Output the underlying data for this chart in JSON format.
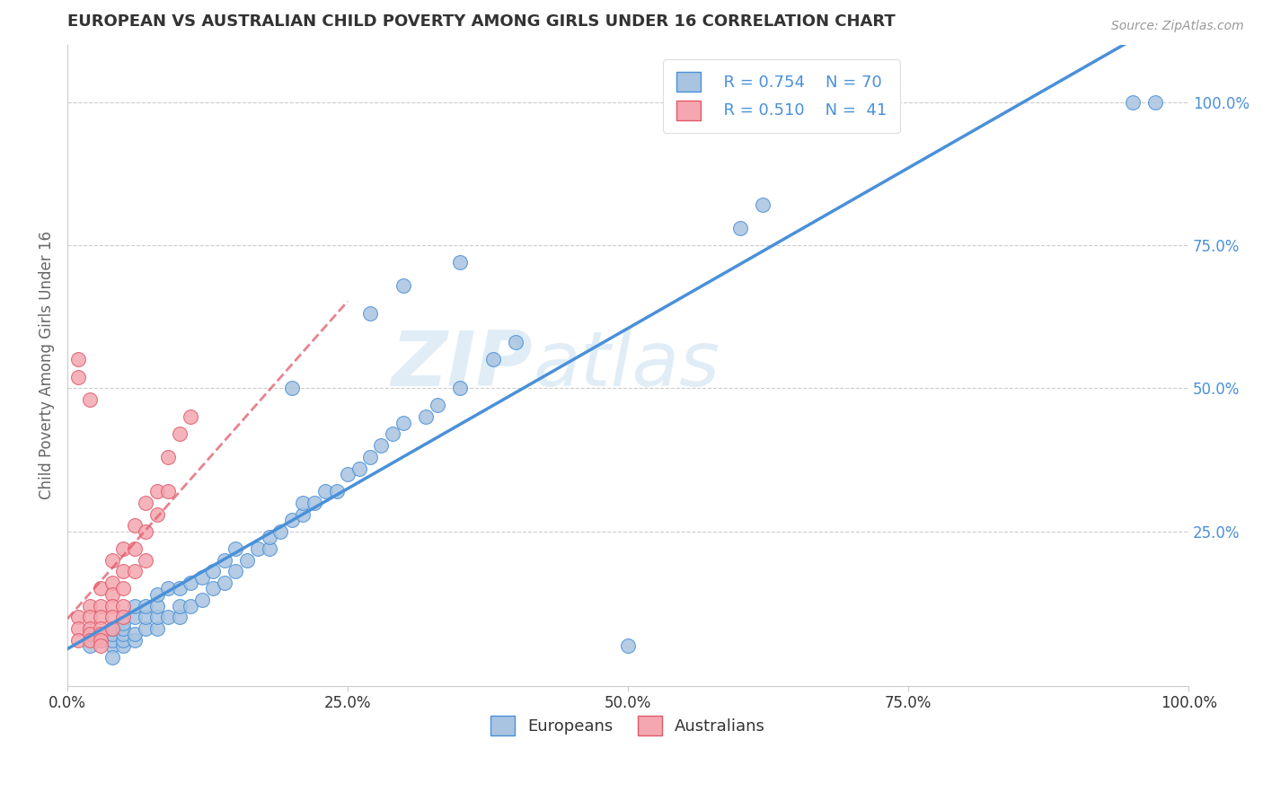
{
  "title": "EUROPEAN VS AUSTRALIAN CHILD POVERTY AMONG GIRLS UNDER 16 CORRELATION CHART",
  "source": "Source: ZipAtlas.com",
  "ylabel": "Child Poverty Among Girls Under 16",
  "xlim": [
    0,
    1.0
  ],
  "ylim": [
    -0.02,
    1.1
  ],
  "watermark_zip": "ZIP",
  "watermark_atlas": "atlas",
  "legend_r_blue": "R = 0.754",
  "legend_n_blue": "N = 70",
  "legend_r_pink": "R = 0.510",
  "legend_n_pink": "N =  41",
  "blue_color": "#a8c4e0",
  "blue_line_color": "#4a90d9",
  "pink_color": "#f4a7b0",
  "pink_line_color": "#e05a6a",
  "blue_scatter_x": [
    0.02,
    0.03,
    0.03,
    0.04,
    0.04,
    0.04,
    0.04,
    0.05,
    0.05,
    0.05,
    0.05,
    0.05,
    0.06,
    0.06,
    0.06,
    0.06,
    0.07,
    0.07,
    0.07,
    0.08,
    0.08,
    0.08,
    0.08,
    0.09,
    0.09,
    0.1,
    0.1,
    0.1,
    0.11,
    0.11,
    0.12,
    0.12,
    0.13,
    0.13,
    0.14,
    0.14,
    0.15,
    0.15,
    0.16,
    0.17,
    0.18,
    0.18,
    0.19,
    0.2,
    0.21,
    0.21,
    0.22,
    0.23,
    0.24,
    0.25,
    0.26,
    0.27,
    0.28,
    0.29,
    0.3,
    0.32,
    0.33,
    0.35,
    0.38,
    0.4,
    0.2,
    0.27,
    0.3,
    0.35,
    0.6,
    0.62,
    0.95,
    0.97,
    0.5,
    0.04
  ],
  "blue_scatter_y": [
    0.05,
    0.07,
    0.06,
    0.05,
    0.06,
    0.07,
    0.08,
    0.05,
    0.06,
    0.07,
    0.08,
    0.09,
    0.06,
    0.07,
    0.1,
    0.12,
    0.08,
    0.1,
    0.12,
    0.08,
    0.1,
    0.12,
    0.14,
    0.1,
    0.15,
    0.1,
    0.12,
    0.15,
    0.12,
    0.16,
    0.13,
    0.17,
    0.15,
    0.18,
    0.16,
    0.2,
    0.18,
    0.22,
    0.2,
    0.22,
    0.22,
    0.24,
    0.25,
    0.27,
    0.28,
    0.3,
    0.3,
    0.32,
    0.32,
    0.35,
    0.36,
    0.38,
    0.4,
    0.42,
    0.44,
    0.45,
    0.47,
    0.5,
    0.55,
    0.58,
    0.5,
    0.63,
    0.68,
    0.72,
    0.78,
    0.82,
    1.0,
    1.0,
    0.05,
    0.03
  ],
  "pink_scatter_x": [
    0.01,
    0.01,
    0.01,
    0.01,
    0.02,
    0.02,
    0.02,
    0.02,
    0.02,
    0.03,
    0.03,
    0.03,
    0.03,
    0.03,
    0.03,
    0.04,
    0.04,
    0.04,
    0.04,
    0.04,
    0.04,
    0.05,
    0.05,
    0.05,
    0.05,
    0.05,
    0.06,
    0.06,
    0.06,
    0.07,
    0.07,
    0.07,
    0.08,
    0.08,
    0.09,
    0.09,
    0.1,
    0.11,
    0.01,
    0.02,
    0.03
  ],
  "pink_scatter_y": [
    0.55,
    0.1,
    0.08,
    0.06,
    0.12,
    0.1,
    0.08,
    0.07,
    0.06,
    0.15,
    0.12,
    0.1,
    0.08,
    0.07,
    0.06,
    0.2,
    0.16,
    0.14,
    0.12,
    0.1,
    0.08,
    0.22,
    0.18,
    0.15,
    0.12,
    0.1,
    0.26,
    0.22,
    0.18,
    0.3,
    0.25,
    0.2,
    0.32,
    0.28,
    0.38,
    0.32,
    0.42,
    0.45,
    0.52,
    0.48,
    0.05
  ],
  "background_color": "#ffffff",
  "grid_color": "#cccccc"
}
